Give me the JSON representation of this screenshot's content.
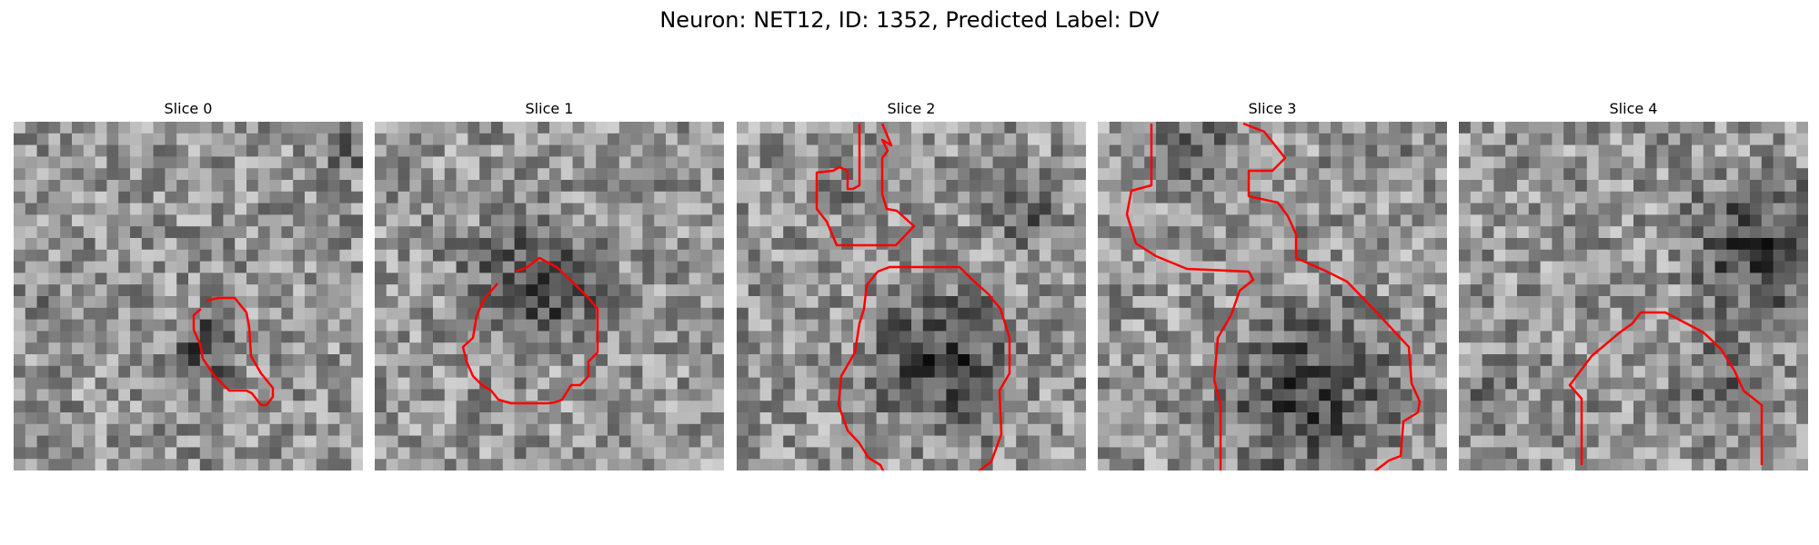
{
  "title": "Neuron: NET12, ID: 1352, Predicted Label: DV",
  "contour_color": "#ff0000",
  "panels": [
    {
      "label": "Slice 0",
      "seed": 11
    },
    {
      "label": "Slice 1",
      "seed": 23
    },
    {
      "label": "Slice 2",
      "seed": 37
    },
    {
      "label": "Slice 3",
      "seed": 41
    },
    {
      "label": "Slice 4",
      "seed": 53
    }
  ]
}
